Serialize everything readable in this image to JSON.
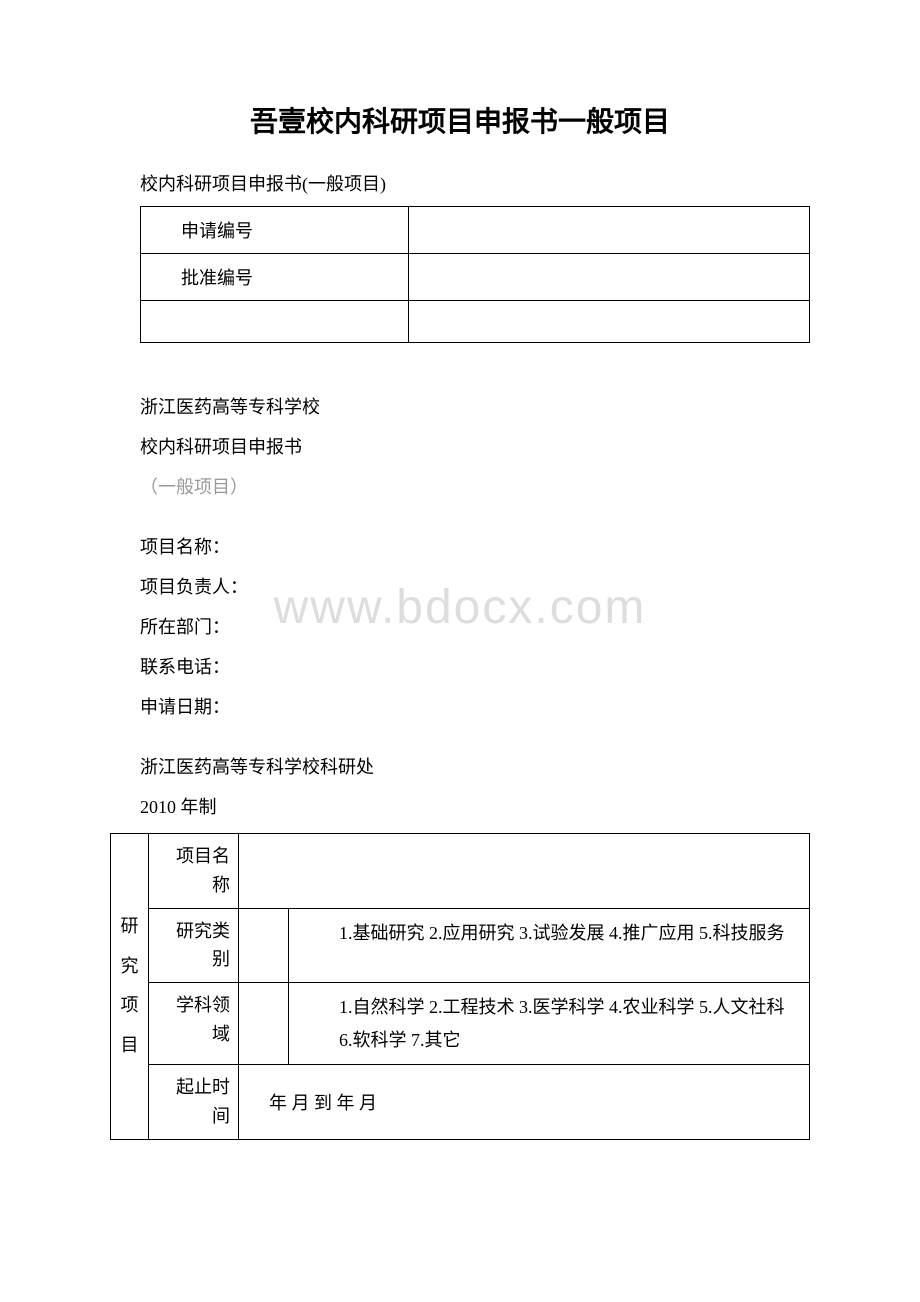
{
  "title": "吾壹校内科研项目申报书一般项目",
  "subtitle": "校内科研项目申报书(一般项目)",
  "top_table": {
    "row1_label": "申请编号",
    "row1_value": "",
    "row2_label": "批准编号",
    "row2_value": "",
    "row3_label": "",
    "row3_value": ""
  },
  "info": {
    "school": "浙江医药高等专科学校",
    "doc_name": "校内科研项目申报书",
    "doc_type": "（一般项目）",
    "project_name_label": "项目名称：",
    "project_leader_label": "项目负责人：",
    "department_label": "所在部门：",
    "phone_label": "联系电话：",
    "apply_date_label": "申请日期：",
    "office": "浙江医药高等专科学校科研处",
    "year": "2010 年制"
  },
  "watermark": "www.bdocx.com",
  "bottom_table": {
    "vertical_header": "研究项目",
    "row1_label": "项目名称",
    "row1_value": "",
    "row2_label": "研究类别",
    "row2_desc": "1.基础研究 2.应用研究 3.试验发展 4.推广应用 5.科技服务",
    "row3_label": "学科领域",
    "row3_desc_line1": "1.自然科学 2.工程技术 3.医学科学 4.农业科学 5.人文社科",
    "row3_desc_line2": "6.软科学 7.其它",
    "row4_label": "起止时间",
    "row4_value": "年 月 到 年 月"
  }
}
